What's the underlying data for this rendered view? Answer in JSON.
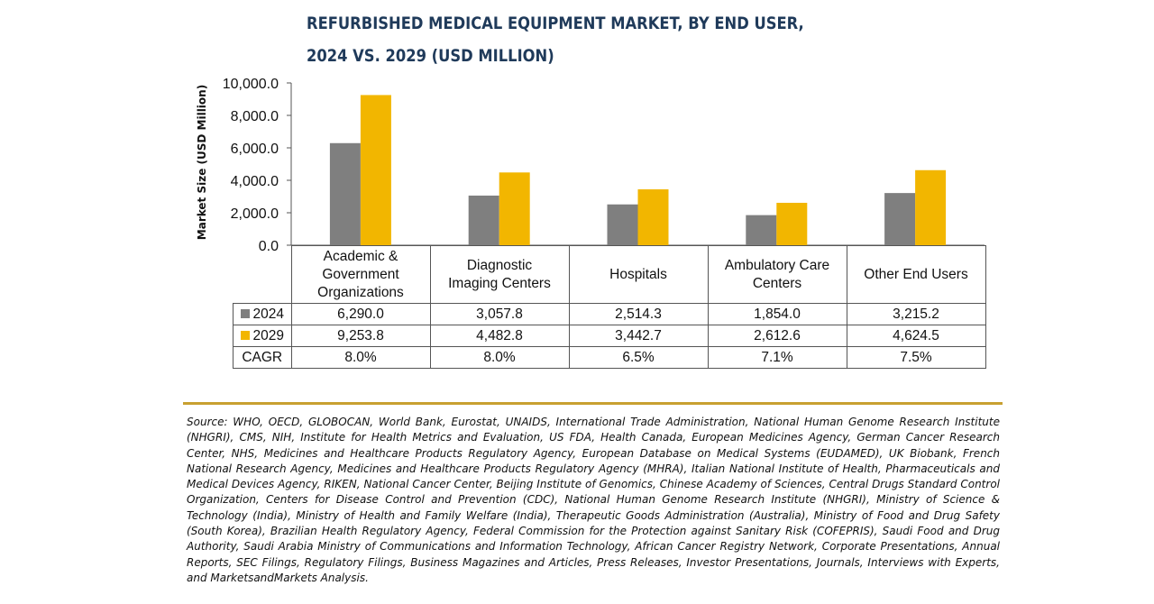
{
  "chart_data": {
    "type": "bar",
    "title": [
      "REFURBISHED MEDICAL EQUIPMENT MARKET, BY END USER,",
      "2024 VS. 2029 (USD MILLION)"
    ],
    "ylabel": "Market Size (USD Million)",
    "ylim": [
      0,
      10000
    ],
    "yticks": [
      "0.0",
      "2,000.0",
      "4,000.0",
      "6,000.0",
      "8,000.0",
      "10,000.0"
    ],
    "categories": [
      [
        "Academic &",
        "Government",
        "Organizations"
      ],
      [
        "Diagnostic",
        "Imaging Centers"
      ],
      [
        "Hospitals"
      ],
      [
        "Ambulatory Care",
        "Centers"
      ],
      [
        "Other End Users"
      ]
    ],
    "series": [
      {
        "name": "2024",
        "color": "#7f7f7f",
        "values": [
          6290.0,
          3057.8,
          2514.3,
          1854.0,
          3215.2
        ],
        "labels": [
          "6,290.0",
          "3,057.8",
          "2,514.3",
          "1,854.0",
          "3,215.2"
        ]
      },
      {
        "name": "2029",
        "color": "#f2b600",
        "values": [
          9253.8,
          4482.8,
          3442.7,
          2612.6,
          4624.5
        ],
        "labels": [
          "9,253.8",
          "4,482.8",
          "3,442.7",
          "2,612.6",
          "4,624.5"
        ]
      }
    ],
    "cagr": {
      "label": "CAGR",
      "values": [
        "8.0%",
        "8.0%",
        "6.5%",
        "7.1%",
        "7.5%"
      ]
    },
    "legend": "data-table"
  },
  "source": "Source: WHO, OECD, GLOBOCAN, World Bank, Eurostat, UNAIDS, International Trade Administration, National Human Genome Research Institute (NHGRI), CMS, NIH, Institute for Health Metrics and Evaluation, US FDA, Health Canada, European Medicines Agency, German Cancer Research Center, NHS, Medicines and Healthcare Products Regulatory Agency, European Database on Medical Systems (EUDAMED), UK Biobank, French National Research Agency, Medicines and Healthcare Products Regulatory Agency (MHRA), Italian National Institute of Health, Pharmaceuticals and Medical Devices Agency, RIKEN, National Cancer Center, Beijing Institute of Genomics, Chinese Academy of Sciences, Central Drugs Standard Control Organization, Centers for Disease Control and Prevention (CDC), National Human Genome Research Institute (NHGRI), Ministry of Science & Technology (India), Ministry of Health and Family Welfare (India), Therapeutic Goods Administration (Australia), Ministry of Food and Drug Safety (South Korea), Brazilian Health Regulatory Agency, Federal Commission for the Protection against Sanitary Risk (COFEPRIS), Saudi Food and Drug Authority, Saudi Arabia Ministry of Communications and Information Technology, African Cancer Registry Network, Corporate Presentations, Annual Reports, SEC Filings, Regulatory Filings, Business Magazines and Articles, Press Releases, Investor Presentations, Journals, Interviews with Experts, and MarketsandMarkets Analysis.",
  "colors": {
    "title": "#1f3a5a",
    "rule": "#c8a030"
  }
}
